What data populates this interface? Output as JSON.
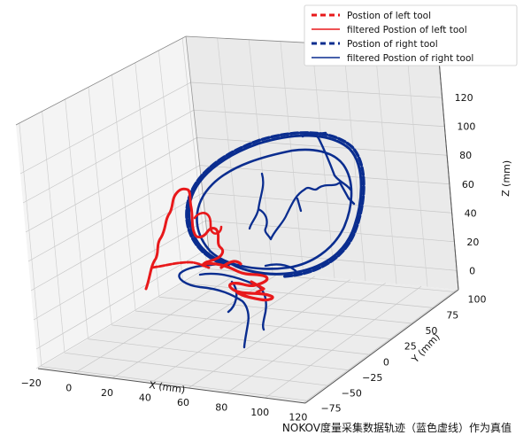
{
  "chart_data": {
    "type": "line",
    "projection": "3d",
    "grid": true,
    "legend_position": "top-right",
    "x_axis": {
      "label": "X (mm)",
      "ticks": [
        "−20",
        "0",
        "20",
        "40",
        "60",
        "80",
        "100",
        "120"
      ],
      "range": [
        -20,
        120
      ]
    },
    "y_axis": {
      "label": "Y (mm)",
      "ticks": [
        "−75",
        "−50",
        "−25",
        "0",
        "25",
        "50",
        "75",
        "100"
      ],
      "range": [
        -75,
        100
      ]
    },
    "z_axis": {
      "label": "Z (mm)",
      "ticks": [
        "0",
        "20",
        "40",
        "60",
        "80",
        "100",
        "120"
      ],
      "range": [
        0,
        120
      ]
    },
    "series": [
      {
        "name": "Postion of left tool",
        "color": "#e8191b",
        "style": "dashed"
      },
      {
        "name": "filtered Postion of left tool",
        "color": "#e8191b",
        "style": "solid"
      },
      {
        "name": "Postion of right tool",
        "color": "#0a2d8f",
        "style": "dashed"
      },
      {
        "name": "filtered Postion of right tool",
        "color": "#0a2d8f",
        "style": "solid"
      }
    ]
  },
  "caption": "NOKOV度量采集数据轨迹（蓝色虚线）作为真值"
}
